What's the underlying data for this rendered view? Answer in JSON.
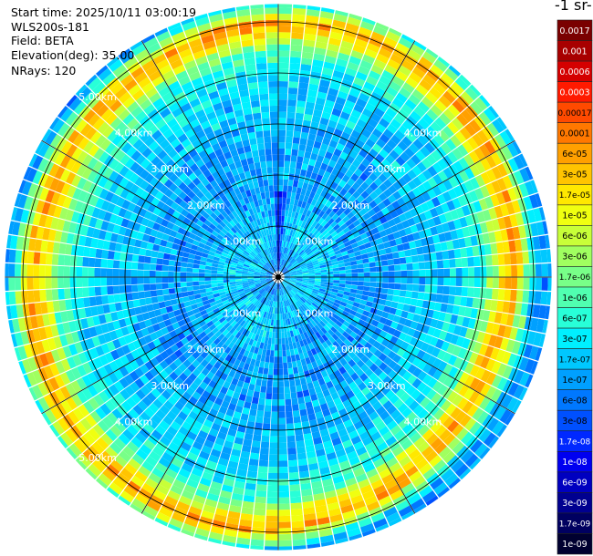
{
  "info": {
    "start_time": "Start time: 2025/10/11 03:00:19",
    "instrument": "WLS200s-181",
    "field": "Field: BETA",
    "elevation": "Elevation(deg): 35.00",
    "nrays": "NRays: 120"
  },
  "colorbar": {
    "unit_label": "-1 sr-",
    "labels": [
      "0.0017",
      "0.001",
      "0.0006",
      "0.0003",
      "0.00017",
      "0.0001",
      "6e-05",
      "3e-05",
      "1.7e-05",
      "1e-05",
      "6e-06",
      "3e-06",
      "1.7e-06",
      "1e-06",
      "6e-07",
      "3e-07",
      "1.7e-07",
      "1e-07",
      "6e-08",
      "3e-08",
      "1.7e-08",
      "1e-08",
      "6e-09",
      "3e-09",
      "1.7e-09",
      "1e-09"
    ],
    "colors": [
      "#7a0000",
      "#a80000",
      "#d40000",
      "#ff1a00",
      "#ff4a00",
      "#ff7800",
      "#ffa000",
      "#ffc400",
      "#ffe800",
      "#f0ff10",
      "#c8ff38",
      "#a0ff60",
      "#78ff88",
      "#50ffb0",
      "#28ffd8",
      "#00f0ff",
      "#00c8ff",
      "#00a0ff",
      "#0078ff",
      "#0050ff",
      "#0028ff",
      "#0000f0",
      "#0000c0",
      "#000090",
      "#000060",
      "#000030"
    ]
  },
  "chart_data": {
    "type": "heatmap",
    "projection": "polar-ppi",
    "n_rays": 120,
    "range_max_km": 5.35,
    "range_rings_km": [
      1,
      2,
      3,
      4,
      5
    ],
    "ring_labels": [
      "1.00km",
      "2.00km",
      "3.00km",
      "4.00km",
      "5.00km"
    ],
    "radial_lines_deg": [
      0,
      30,
      60,
      90,
      120,
      150,
      180,
      210,
      240,
      270,
      300,
      330
    ],
    "grid": true,
    "field": "BETA",
    "radial_profile_level_index": [
      {
        "r_km": 0.0,
        "level": 18
      },
      {
        "r_km": 0.5,
        "level": 16
      },
      {
        "r_km": 1.0,
        "level": 16
      },
      {
        "r_km": 1.5,
        "level": 17
      },
      {
        "r_km": 2.0,
        "level": 17
      },
      {
        "r_km": 2.5,
        "level": 17
      },
      {
        "r_km": 3.0,
        "level": 16
      },
      {
        "r_km": 3.5,
        "level": 16
      },
      {
        "r_km": 3.9,
        "level": 15
      },
      {
        "r_km": 4.3,
        "level": 13
      },
      {
        "r_km": 4.6,
        "level": 8
      },
      {
        "r_km": 4.85,
        "level": 6
      },
      {
        "r_km": 5.05,
        "level": 11
      },
      {
        "r_km": 5.3,
        "level": 17
      }
    ]
  }
}
